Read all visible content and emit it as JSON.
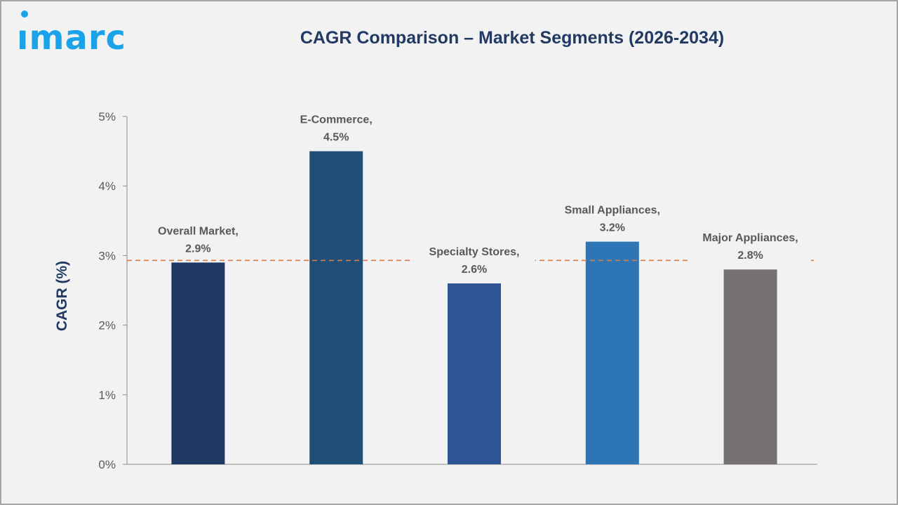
{
  "logo": {
    "text": "imarc",
    "color": "#1aa3e8"
  },
  "title": "CAGR Comparison – Market Segments (2026-2034)",
  "chart_data": {
    "type": "bar",
    "title": "CAGR Comparison – Market Segments (2026-2034)",
    "xlabel": "",
    "ylabel": "CAGR (%)",
    "ylim": [
      0,
      5
    ],
    "ytick_values": [
      0,
      1,
      2,
      3,
      4,
      5
    ],
    "ytick_labels": [
      "0%",
      "1%",
      "2%",
      "3%",
      "4%",
      "5%"
    ],
    "grid": false,
    "legend": "none",
    "categories": [
      "Overall Market",
      "E-Commerce",
      "Specialty Stores",
      "Small Appliances",
      "Major Appliances"
    ],
    "values": [
      2.9,
      4.5,
      2.6,
      3.2,
      2.8
    ],
    "data_labels": [
      [
        "Overall Market,",
        "2.9%"
      ],
      [
        "E-Commerce,",
        "4.5%"
      ],
      [
        "Specialty Stores,",
        "2.6%"
      ],
      [
        "Small Appliances,",
        "3.2%"
      ],
      [
        "Major Appliances,",
        "2.8%"
      ]
    ],
    "bar_colors": [
      "#203864",
      "#1f4e79",
      "#2f5597",
      "#2e75b6",
      "#767171"
    ],
    "reference_line": {
      "value": 2.93,
      "style": "dashed",
      "color": "#e07b39"
    }
  }
}
